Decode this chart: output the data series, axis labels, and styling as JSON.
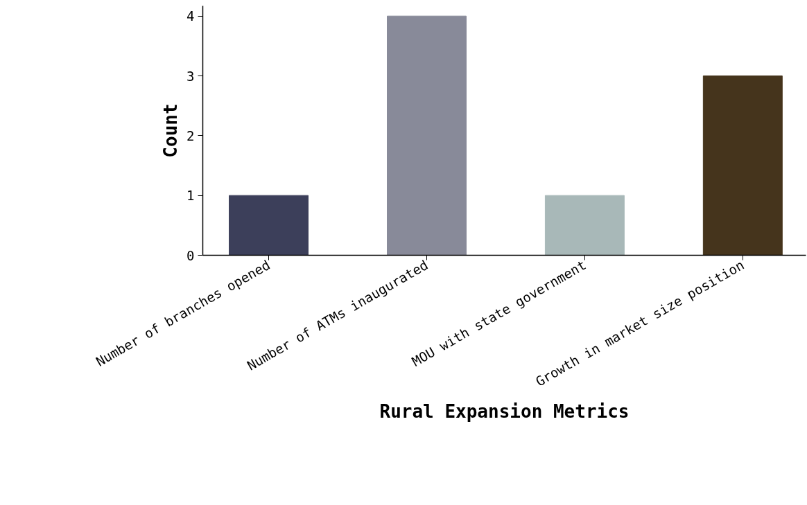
{
  "chart_data": {
    "type": "bar",
    "xlabel": "Rural Expansion Metrics",
    "ylabel": "Count",
    "categories": [
      "Number of branches opened",
      "Number of ATMs inaugurated",
      "MOU with state government",
      "Growth in market size position"
    ],
    "values": [
      1,
      4,
      1,
      3
    ],
    "colors": [
      "#3c3f5a",
      "#888a99",
      "#a8b8b8",
      "#45341c"
    ],
    "ylim": [
      0,
      4.17
    ],
    "yticks": [
      0,
      1,
      2,
      3,
      4
    ],
    "grid": false
  }
}
